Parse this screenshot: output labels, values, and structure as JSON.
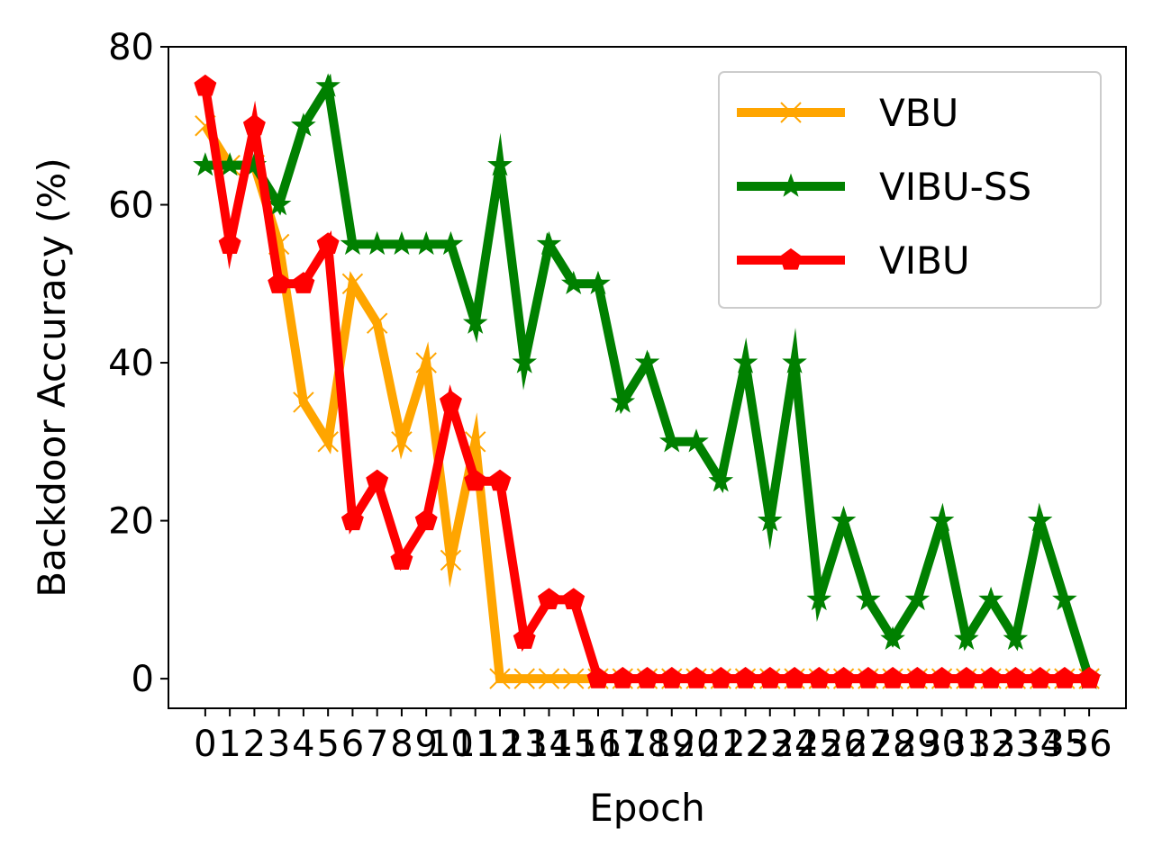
{
  "chart_data": {
    "type": "line",
    "title": "",
    "xlabel": "Epoch",
    "ylabel": "Backdoor Accuracy (%)",
    "x": [
      0,
      1,
      2,
      3,
      4,
      5,
      6,
      7,
      8,
      9,
      10,
      11,
      12,
      13,
      14,
      15,
      16,
      17,
      18,
      19,
      20,
      21,
      22,
      23,
      24,
      25,
      26,
      27,
      28,
      29,
      30,
      31,
      32,
      33,
      34,
      35,
      36
    ],
    "xtick_labels": [
      "0",
      "1",
      "2",
      "3",
      "4",
      "5",
      "6",
      "7",
      "8",
      "9",
      "10",
      "11",
      "12",
      "13",
      "14",
      "15",
      "16",
      "17",
      "18",
      "19",
      "20",
      "21",
      "22",
      "23",
      "24",
      "25",
      "26",
      "27",
      "28",
      "29",
      "30",
      "31",
      "32",
      "33",
      "34",
      "35",
      "36"
    ],
    "ylim": [
      -3.75,
      80
    ],
    "yticks": [
      0,
      20,
      40,
      60,
      80
    ],
    "grid": false,
    "legend_position": "top-right",
    "series": [
      {
        "name": "VBU",
        "color": "#FFA500",
        "marker": "x",
        "values": [
          70,
          65,
          65,
          55,
          35,
          30,
          50,
          45,
          30,
          40,
          15,
          30,
          0,
          0,
          0,
          0,
          0,
          0,
          0,
          0,
          0,
          0,
          0,
          0,
          0,
          0,
          0,
          0,
          0,
          0,
          0,
          0,
          0,
          0,
          0,
          0,
          0
        ]
      },
      {
        "name": "VIBU-SS",
        "color": "#008000",
        "marker": "star",
        "values": [
          65,
          65,
          65,
          60,
          70,
          75,
          55,
          55,
          55,
          55,
          55,
          45,
          65,
          40,
          55,
          50,
          50,
          35,
          40,
          30,
          30,
          25,
          40,
          20,
          40,
          10,
          20,
          10,
          5,
          10,
          20,
          5,
          10,
          5,
          20,
          10,
          0
        ]
      },
      {
        "name": "VIBU",
        "color": "#FF0000",
        "marker": "pentagon",
        "values": [
          75,
          55,
          70,
          50,
          50,
          55,
          20,
          25,
          15,
          20,
          35,
          25,
          25,
          5,
          10,
          10,
          0,
          0,
          0,
          0,
          0,
          0,
          0,
          0,
          0,
          0,
          0,
          0,
          0,
          0,
          0,
          0,
          0,
          0,
          0,
          0,
          0
        ]
      }
    ]
  }
}
